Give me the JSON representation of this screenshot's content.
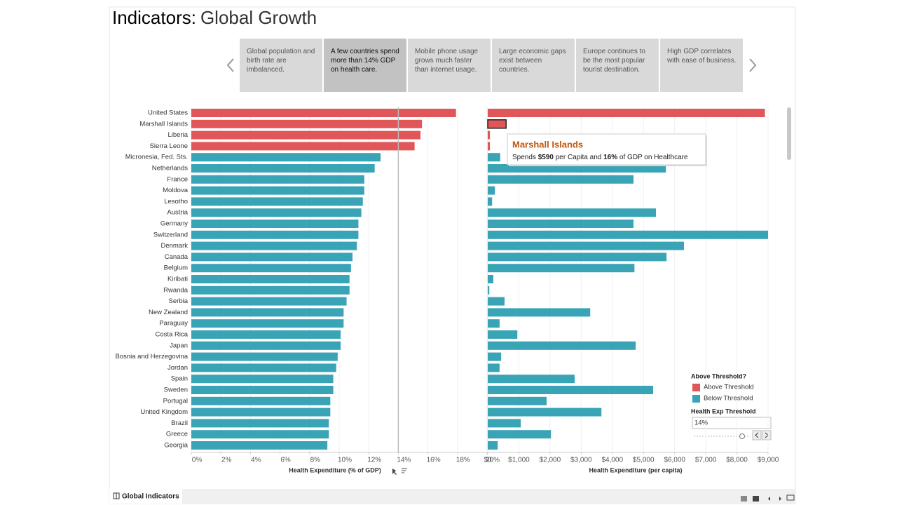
{
  "header": {
    "title_bold": "Indicators:",
    "title_rest": "Global Growth"
  },
  "story_points": {
    "active": 1,
    "items": [
      "Global population and birth rate are imbalanced.",
      "A few countries spend more than 14% GDP on health care.",
      "Mobile phone usage grows much faster than internet usage.",
      "Large economic gaps exist between countries.",
      "Europe continues to be the most popular tourist destination.",
      "High GDP correlates with ease of business."
    ]
  },
  "chart_data": [
    {
      "type": "bar",
      "orientation": "horizontal",
      "x_label": "Health Expenditure (% of GDP)",
      "categories": [
        "United States",
        "Marshall Islands",
        "Liberia",
        "Sierra Leone",
        "Micronesia, Fed. Sts.",
        "Netherlands",
        "France",
        "Moldova",
        "Lesotho",
        "Austria",
        "Germany",
        "Switzerland",
        "Denmark",
        "Canada",
        "Belgium",
        "Kiribati",
        "Rwanda",
        "Serbia",
        "New Zealand",
        "Paraguay",
        "Costa Rica",
        "Japan",
        "Bosnia and Herzegovina",
        "Jordan",
        "Spain",
        "Sweden",
        "Portugal",
        "United Kingdom",
        "Brazil",
        "Greece",
        "Georgia"
      ],
      "values": [
        17.9,
        15.6,
        15.5,
        15.1,
        12.8,
        12.4,
        11.7,
        11.7,
        11.6,
        11.5,
        11.3,
        11.3,
        11.2,
        10.9,
        10.8,
        10.7,
        10.7,
        10.5,
        10.3,
        10.3,
        10.1,
        10.1,
        9.9,
        9.8,
        9.6,
        9.6,
        9.4,
        9.4,
        9.3,
        9.3,
        9.2
      ],
      "xlim": [
        0,
        20
      ],
      "xticks": [
        {
          "value": 0,
          "label": "0%"
        },
        {
          "value": 2,
          "label": "2%"
        },
        {
          "value": 4,
          "label": "4%"
        },
        {
          "value": 6,
          "label": "6%"
        },
        {
          "value": 8,
          "label": "8%"
        },
        {
          "value": 10,
          "label": "10%"
        },
        {
          "value": 12,
          "label": "12%"
        },
        {
          "value": 14,
          "label": "14%"
        },
        {
          "value": 16,
          "label": "16%"
        },
        {
          "value": 18,
          "label": "18%"
        },
        {
          "value": 20,
          "label": "20%"
        }
      ],
      "grid": true
    },
    {
      "type": "bar",
      "orientation": "horizontal",
      "x_label": "Health Expenditure (per capita)",
      "values": [
        8900,
        590,
        70,
        70,
        400,
        5720,
        4680,
        230,
        140,
        5400,
        4680,
        9000,
        6300,
        5740,
        4710,
        180,
        50,
        540,
        3290,
        380,
        950,
        4750,
        430,
        380,
        2790,
        5310,
        1890,
        3650,
        1060,
        2030,
        320
      ],
      "xlim": [
        0,
        9000
      ],
      "xticks": [
        {
          "value": 0,
          "label": "$0"
        },
        {
          "value": 1000,
          "label": "$1,000"
        },
        {
          "value": 2000,
          "label": "$2,000"
        },
        {
          "value": 3000,
          "label": "$3,000"
        },
        {
          "value": 4000,
          "label": "$4,000"
        },
        {
          "value": 5000,
          "label": "$5,000"
        },
        {
          "value": 6000,
          "label": "$6,000"
        },
        {
          "value": 7000,
          "label": "$7,000"
        },
        {
          "value": 8000,
          "label": "$8,000"
        },
        {
          "value": 9000,
          "label": "$9,000"
        }
      ],
      "grid": true
    }
  ],
  "legend": {
    "title": "Above Threshold?",
    "items": [
      {
        "label": "Above Threshold",
        "color": "#e15759"
      },
      {
        "label": "Below Threshold",
        "color": "#3aa4b7"
      }
    ],
    "threshold_label": "Health Exp Threshold",
    "threshold": {
      "value": 14,
      "label": "14%"
    }
  },
  "tooltip": {
    "title": "Marshall Islands",
    "parts": [
      "Spends ",
      "$590",
      " per Capita and ",
      "16%",
      " of GDP on Healthcare"
    ]
  },
  "footer": {
    "tab": "Global Indicators"
  }
}
